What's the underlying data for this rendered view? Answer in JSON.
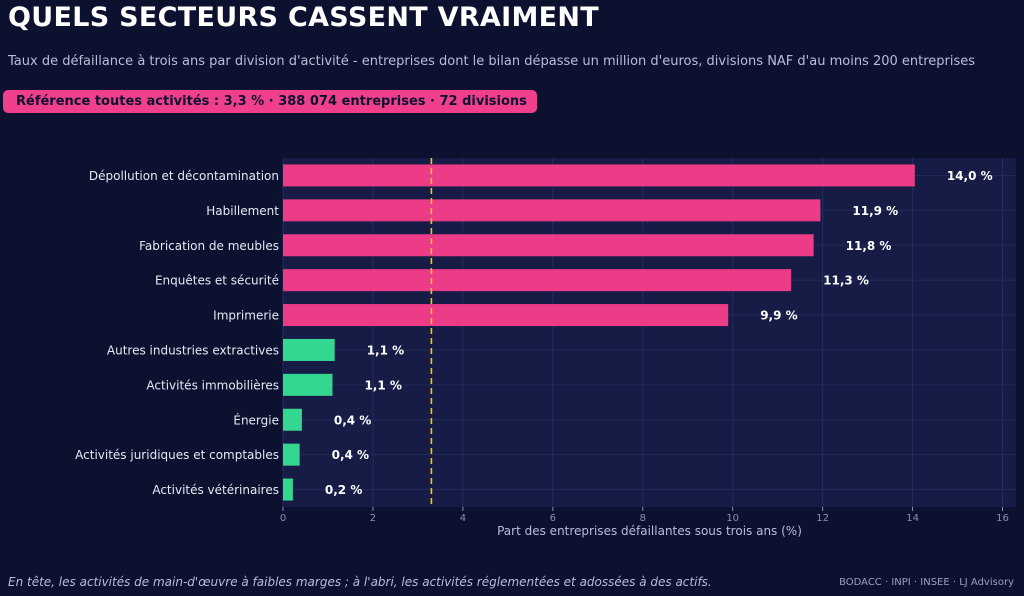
{
  "header": {
    "title": "QUELS SECTEURS CASSENT VRAIMENT",
    "subtitle": "Taux de défaillance à trois ans par division d'activité - entreprises dont le bilan dépasse un million d'euros, divisions NAF d'au moins 200 entreprises",
    "badge": "Référence toutes activités : 3,3 %  ·  388 074 entreprises  ·  72 divisions"
  },
  "footer": {
    "note": "En tête, les activités de main-d'œuvre à faibles marges ; à l'abri, les activités réglementées et adossées à des actifs.",
    "source": "BODACC · INPI · INSEE · LJ Advisory"
  },
  "colors": {
    "background": "#0d1130",
    "plot_background": "#161c46",
    "high": "#ec3b87",
    "low": "#34d78f",
    "reference_line": "#f5c518",
    "badge": "#f0408c"
  },
  "chart_data": {
    "type": "bar",
    "orientation": "horizontal",
    "xlabel": "Part des entreprises défaillantes sous trois ans (%)",
    "xlim": [
      0,
      16.3
    ],
    "xticks": [
      0,
      2,
      4,
      6,
      8,
      10,
      12,
      14,
      16
    ],
    "grid": true,
    "reference_value": 3.3,
    "categories": [
      "Dépollution et décontamination",
      "Habillement",
      "Fabrication de meubles",
      "Enquêtes et sécurité",
      "Imprimerie",
      "Autres industries extractives",
      "Activités immobilières",
      "Énergie",
      "Activités juridiques et comptables",
      "Activités vétérinaires"
    ],
    "values": [
      14.05,
      11.95,
      11.8,
      11.3,
      9.9,
      1.15,
      1.1,
      0.42,
      0.37,
      0.22
    ],
    "labels": [
      "14,0 %",
      "11,9 %",
      "11,8 %",
      "11,3 %",
      "9,9 %",
      "1,1 %",
      "1,1 %",
      "0,4 %",
      "0,4 %",
      "0,2 %"
    ],
    "groups": [
      "high",
      "high",
      "high",
      "high",
      "high",
      "low",
      "low",
      "low",
      "low",
      "low"
    ]
  }
}
